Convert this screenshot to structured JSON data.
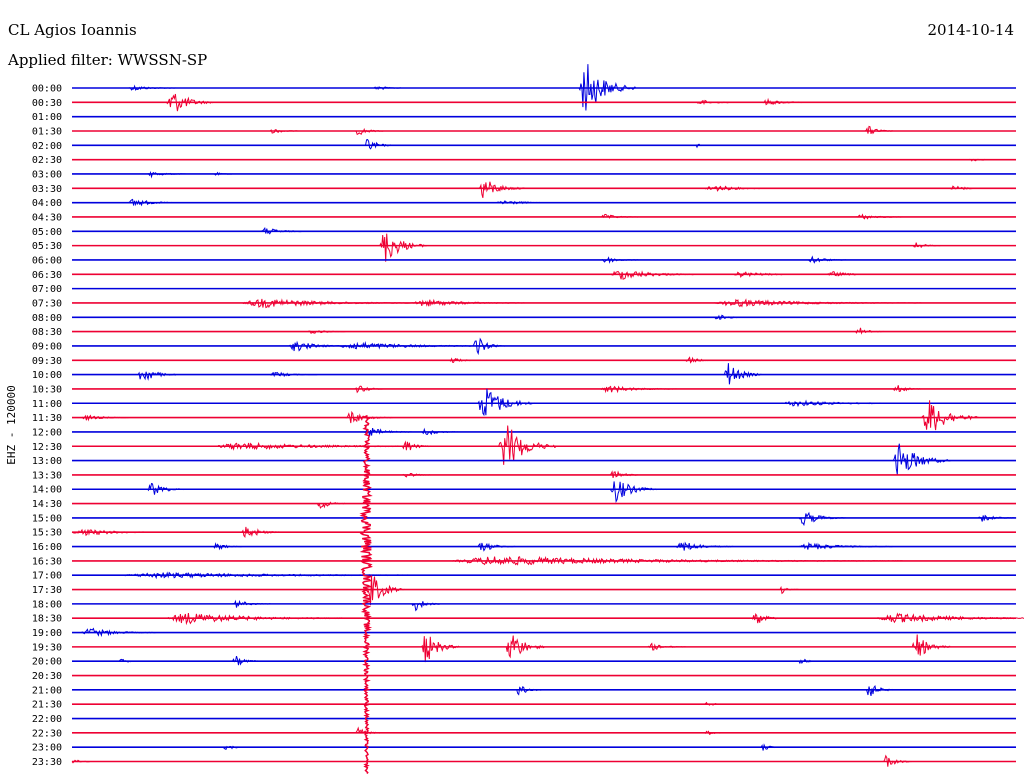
{
  "header": {
    "station": "CL Agios Ioannis",
    "date": "2014-10-14",
    "filter": "Applied filter: WWSSN-SP"
  },
  "colors": {
    "blue": "#0000dd",
    "red": "#ee0033"
  },
  "chart_data": {
    "type": "helicorder",
    "channel_label": "EHZ - 120000",
    "rows": [
      {
        "time": "00:00",
        "color": "blue",
        "events": [
          {
            "at": 0.06,
            "amp": 3,
            "len": 0.05
          },
          {
            "at": 0.32,
            "amp": 3,
            "len": 0.03
          },
          {
            "at": 0.537,
            "amp": 30,
            "len": 0.06
          }
        ]
      },
      {
        "time": "00:30",
        "color": "red",
        "events": [
          {
            "at": 0.1,
            "amp": 15,
            "len": 0.05
          },
          {
            "at": 0.66,
            "amp": 3,
            "len": 0.05
          },
          {
            "at": 0.73,
            "amp": 3,
            "len": 0.06
          }
        ]
      },
      {
        "time": "01:00",
        "color": "blue",
        "events": []
      },
      {
        "time": "01:30",
        "color": "red",
        "events": [
          {
            "at": 0.21,
            "amp": 3,
            "len": 0.03
          },
          {
            "at": 0.3,
            "amp": 5,
            "len": 0.03
          },
          {
            "at": 0.84,
            "amp": 6,
            "len": 0.03
          }
        ]
      },
      {
        "time": "02:00",
        "color": "blue",
        "events": [
          {
            "at": 0.31,
            "amp": 8,
            "len": 0.03
          },
          {
            "at": 0.66,
            "amp": 2,
            "len": 0.02
          }
        ]
      },
      {
        "time": "02:30",
        "color": "red",
        "events": [
          {
            "at": 0.95,
            "amp": 2,
            "len": 0.03
          }
        ]
      },
      {
        "time": "03:00",
        "color": "blue",
        "events": [
          {
            "at": 0.08,
            "amp": 3,
            "len": 0.04
          },
          {
            "at": 0.15,
            "amp": 2,
            "len": 0.02
          }
        ]
      },
      {
        "time": "03:30",
        "color": "red",
        "events": [
          {
            "at": 0.43,
            "amp": 12,
            "len": 0.05
          },
          {
            "at": 0.67,
            "amp": 4,
            "len": 0.07
          },
          {
            "at": 0.93,
            "amp": 3,
            "len": 0.04
          }
        ]
      },
      {
        "time": "04:00",
        "color": "blue",
        "events": [
          {
            "at": 0.06,
            "amp": 5,
            "len": 0.05
          },
          {
            "at": 0.45,
            "amp": 3,
            "len": 0.06
          }
        ]
      },
      {
        "time": "04:30",
        "color": "red",
        "events": [
          {
            "at": 0.56,
            "amp": 3,
            "len": 0.04
          },
          {
            "at": 0.83,
            "amp": 3,
            "len": 0.05
          }
        ]
      },
      {
        "time": "05:00",
        "color": "blue",
        "events": [
          {
            "at": 0.2,
            "amp": 4,
            "len": 0.05
          }
        ]
      },
      {
        "time": "05:30",
        "color": "red",
        "events": [
          {
            "at": 0.326,
            "amp": 20,
            "len": 0.05
          },
          {
            "at": 0.89,
            "amp": 4,
            "len": 0.03
          }
        ]
      },
      {
        "time": "06:00",
        "color": "blue",
        "events": [
          {
            "at": 0.56,
            "amp": 4,
            "len": 0.04
          },
          {
            "at": 0.78,
            "amp": 4,
            "len": 0.04
          }
        ]
      },
      {
        "time": "06:30",
        "color": "red",
        "events": [
          {
            "at": 0.57,
            "amp": 6,
            "len": 0.1
          },
          {
            "at": 0.7,
            "amp": 3,
            "len": 0.08
          },
          {
            "at": 0.8,
            "amp": 3,
            "len": 0.05
          }
        ]
      },
      {
        "time": "07:00",
        "color": "blue",
        "events": []
      },
      {
        "time": "07:30",
        "color": "red",
        "events": [
          {
            "at": 0.18,
            "amp": 5,
            "len": 0.2
          },
          {
            "at": 0.36,
            "amp": 4,
            "len": 0.12
          },
          {
            "at": 0.68,
            "amp": 4,
            "len": 0.22
          }
        ]
      },
      {
        "time": "08:00",
        "color": "blue",
        "events": [
          {
            "at": 0.68,
            "amp": 3,
            "len": 0.04
          }
        ]
      },
      {
        "time": "08:30",
        "color": "red",
        "events": [
          {
            "at": 0.25,
            "amp": 3,
            "len": 0.04
          },
          {
            "at": 0.83,
            "amp": 5,
            "len": 0.03
          }
        ]
      },
      {
        "time": "09:00",
        "color": "blue",
        "events": [
          {
            "at": 0.23,
            "amp": 6,
            "len": 0.06
          },
          {
            "at": 0.28,
            "amp": 4,
            "len": 0.18
          },
          {
            "at": 0.425,
            "amp": 12,
            "len": 0.03
          }
        ]
      },
      {
        "time": "09:30",
        "color": "red",
        "events": [
          {
            "at": 0.4,
            "amp": 3,
            "len": 0.03
          },
          {
            "at": 0.65,
            "amp": 4,
            "len": 0.03
          }
        ]
      },
      {
        "time": "10:00",
        "color": "blue",
        "events": [
          {
            "at": 0.07,
            "amp": 10,
            "len": 0.04
          },
          {
            "at": 0.21,
            "amp": 3,
            "len": 0.05
          },
          {
            "at": 0.69,
            "amp": 14,
            "len": 0.04
          }
        ]
      },
      {
        "time": "10:30",
        "color": "red",
        "events": [
          {
            "at": 0.3,
            "amp": 5,
            "len": 0.03
          },
          {
            "at": 0.56,
            "amp": 4,
            "len": 0.08
          },
          {
            "at": 0.87,
            "amp": 5,
            "len": 0.03
          }
        ]
      },
      {
        "time": "11:00",
        "color": "blue",
        "events": [
          {
            "at": 0.43,
            "amp": 20,
            "len": 0.06
          },
          {
            "at": 0.75,
            "amp": 3,
            "len": 0.15
          }
        ]
      },
      {
        "time": "11:30",
        "color": "red",
        "events": [
          {
            "at": 0.01,
            "amp": 3,
            "len": 0.05
          },
          {
            "at": 0.29,
            "amp": 6,
            "len": 0.05
          },
          {
            "at": 0.9,
            "amp": 22,
            "len": 0.06
          }
        ]
      },
      {
        "time": "12:00",
        "color": "blue",
        "events": [
          {
            "at": 0.31,
            "amp": 5,
            "len": 0.05
          },
          {
            "at": 0.37,
            "amp": 4,
            "len": 0.04
          }
        ]
      },
      {
        "time": "12:30",
        "color": "red",
        "events": [
          {
            "at": 0.15,
            "amp": 4,
            "len": 0.25
          },
          {
            "at": 0.35,
            "amp": 8,
            "len": 0.03
          },
          {
            "at": 0.452,
            "amp": 28,
            "len": 0.06
          }
        ]
      },
      {
        "time": "13:00",
        "color": "blue",
        "events": [
          {
            "at": 0.87,
            "amp": 20,
            "len": 0.06
          }
        ]
      },
      {
        "time": "13:30",
        "color": "red",
        "events": [
          {
            "at": 0.35,
            "amp": 4,
            "len": 0.03
          },
          {
            "at": 0.57,
            "amp": 6,
            "len": 0.03
          }
        ]
      },
      {
        "time": "14:00",
        "color": "blue",
        "events": [
          {
            "at": 0.08,
            "amp": 8,
            "len": 0.04
          },
          {
            "at": 0.57,
            "amp": 14,
            "len": 0.05
          }
        ]
      },
      {
        "time": "14:30",
        "color": "red",
        "events": [
          {
            "at": 0.26,
            "amp": 6,
            "len": 0.03
          }
        ]
      },
      {
        "time": "15:00",
        "color": "blue",
        "events": [
          {
            "at": 0.77,
            "amp": 8,
            "len": 0.05
          },
          {
            "at": 0.96,
            "amp": 4,
            "len": 0.04
          }
        ]
      },
      {
        "time": "15:30",
        "color": "red",
        "events": [
          {
            "at": 0.0,
            "amp": 4,
            "len": 0.1
          },
          {
            "at": 0.18,
            "amp": 8,
            "len": 0.04
          }
        ]
      },
      {
        "time": "16:00",
        "color": "blue",
        "events": [
          {
            "at": 0.15,
            "amp": 4,
            "len": 0.03
          },
          {
            "at": 0.43,
            "amp": 6,
            "len": 0.04
          },
          {
            "at": 0.64,
            "amp": 6,
            "len": 0.06
          },
          {
            "at": 0.77,
            "amp": 4,
            "len": 0.1
          }
        ]
      },
      {
        "time": "16:30",
        "color": "red",
        "events": [
          {
            "at": 0.4,
            "amp": 5,
            "len": 0.48
          }
        ]
      },
      {
        "time": "17:00",
        "color": "blue",
        "events": [
          {
            "at": 0.05,
            "amp": 3,
            "len": 0.4
          }
        ]
      },
      {
        "time": "17:30",
        "color": "red",
        "events": [
          {
            "at": 0.312,
            "amp": 20,
            "len": 0.04
          },
          {
            "at": 0.75,
            "amp": 4,
            "len": 0.02
          }
        ]
      },
      {
        "time": "18:00",
        "color": "blue",
        "events": [
          {
            "at": 0.17,
            "amp": 4,
            "len": 0.04
          },
          {
            "at": 0.36,
            "amp": 8,
            "len": 0.03
          }
        ]
      },
      {
        "time": "18:30",
        "color": "red",
        "events": [
          {
            "at": 0.1,
            "amp": 6,
            "len": 0.2
          },
          {
            "at": 0.72,
            "amp": 10,
            "len": 0.03
          },
          {
            "at": 0.85,
            "amp": 5,
            "len": 0.2
          }
        ]
      },
      {
        "time": "19:00",
        "color": "blue",
        "events": [
          {
            "at": 0.01,
            "amp": 5,
            "len": 0.08
          }
        ]
      },
      {
        "time": "19:30",
        "color": "red",
        "events": [
          {
            "at": 0.37,
            "amp": 18,
            "len": 0.04
          },
          {
            "at": 0.46,
            "amp": 20,
            "len": 0.04
          },
          {
            "at": 0.61,
            "amp": 4,
            "len": 0.04
          },
          {
            "at": 0.89,
            "amp": 14,
            "len": 0.04
          }
        ]
      },
      {
        "time": "20:00",
        "color": "blue",
        "events": [
          {
            "at": 0.05,
            "amp": 3,
            "len": 0.02
          },
          {
            "at": 0.17,
            "amp": 6,
            "len": 0.03
          },
          {
            "at": 0.77,
            "amp": 4,
            "len": 0.02
          }
        ]
      },
      {
        "time": "20:30",
        "color": "red",
        "events": []
      },
      {
        "time": "21:00",
        "color": "blue",
        "events": [
          {
            "at": 0.47,
            "amp": 6,
            "len": 0.03
          },
          {
            "at": 0.84,
            "amp": 10,
            "len": 0.03
          }
        ]
      },
      {
        "time": "21:30",
        "color": "red",
        "events": [
          {
            "at": 0.67,
            "amp": 3,
            "len": 0.02
          }
        ]
      },
      {
        "time": "22:00",
        "color": "blue",
        "events": []
      },
      {
        "time": "22:30",
        "color": "red",
        "events": [
          {
            "at": 0.3,
            "amp": 5,
            "len": 0.03
          },
          {
            "at": 0.67,
            "amp": 3,
            "len": 0.02
          }
        ]
      },
      {
        "time": "23:00",
        "color": "blue",
        "events": [
          {
            "at": 0.16,
            "amp": 3,
            "len": 0.03
          },
          {
            "at": 0.73,
            "amp": 4,
            "len": 0.02
          }
        ]
      },
      {
        "time": "23:30",
        "color": "red",
        "events": [
          {
            "at": 0.0,
            "amp": 3,
            "len": 0.02
          },
          {
            "at": 0.86,
            "amp": 8,
            "len": 0.03
          }
        ]
      }
    ],
    "big_event": {
      "row_start": 23,
      "row_end": 48,
      "at": 0.312
    }
  }
}
